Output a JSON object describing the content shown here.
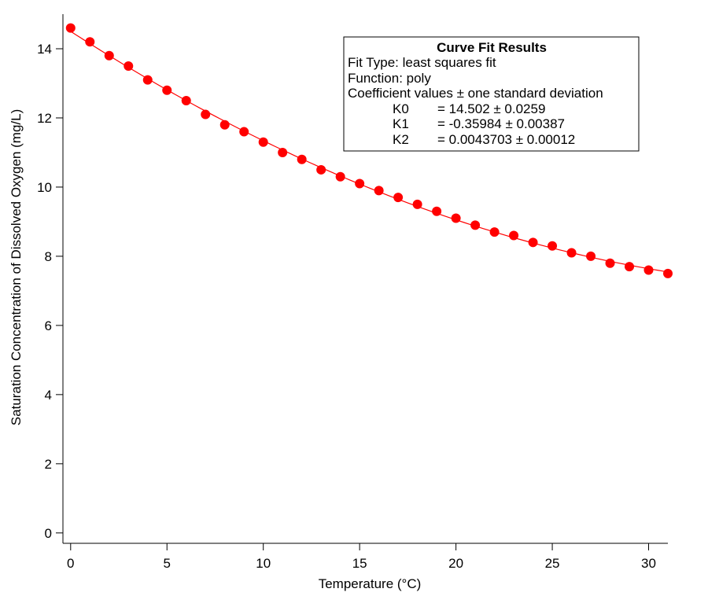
{
  "chart_data": {
    "type": "scatter",
    "title": "",
    "xlabel": "Temperature (°C)",
    "ylabel": "Saturation Concentration of Dissolved Oxygen (mg/L)",
    "xlim": [
      -0.4,
      31.0
    ],
    "ylim": [
      -0.3,
      15.0
    ],
    "grid": false,
    "legend": "none",
    "x_ticks": [
      0,
      5,
      10,
      15,
      20,
      25,
      30
    ],
    "x_tick_labels": [
      "0",
      "5",
      "10",
      "15",
      "20",
      "25",
      "30"
    ],
    "y_ticks": [
      0,
      2,
      4,
      6,
      8,
      10,
      12,
      14
    ],
    "y_tick_labels": [
      "0",
      "2",
      "4",
      "6",
      "8",
      "10",
      "12",
      "14"
    ],
    "series": [
      {
        "marker_color": "#ff0000",
        "x": [
          0,
          1,
          2,
          3,
          4,
          5,
          6,
          7,
          8,
          9,
          10,
          11,
          12,
          13,
          14,
          15,
          16,
          17,
          18,
          19,
          20,
          21,
          22,
          23,
          24,
          25,
          26,
          27,
          28,
          29,
          30,
          31
        ],
        "y": [
          14.6,
          14.2,
          13.8,
          13.5,
          13.1,
          12.8,
          12.5,
          12.1,
          11.8,
          11.6,
          11.3,
          11.0,
          10.8,
          10.5,
          10.3,
          10.1,
          9.9,
          9.7,
          9.5,
          9.3,
          9.1,
          8.9,
          8.7,
          8.6,
          8.4,
          8.3,
          8.1,
          8.0,
          7.8,
          7.7,
          7.6,
          7.5
        ]
      }
    ],
    "fit": {
      "function": "poly",
      "line_color": "#ff0000",
      "coefficients": [
        14.502,
        -0.35984,
        0.0043703
      ],
      "x_range": [
        0,
        31
      ]
    },
    "annotation": {
      "title": "Curve Fit Results",
      "lines": [
        "Fit Type: least squares fit",
        "Function: poly",
        "Coefficient values ± one standard deviation"
      ],
      "coefficients": [
        {
          "name": "K0",
          "value": "= 14.502 ± 0.0259"
        },
        {
          "name": "K1",
          "value": "= -0.35984 ± 0.00387"
        },
        {
          "name": "K2",
          "value": "= 0.0043703 ± 0.00012"
        }
      ]
    }
  }
}
